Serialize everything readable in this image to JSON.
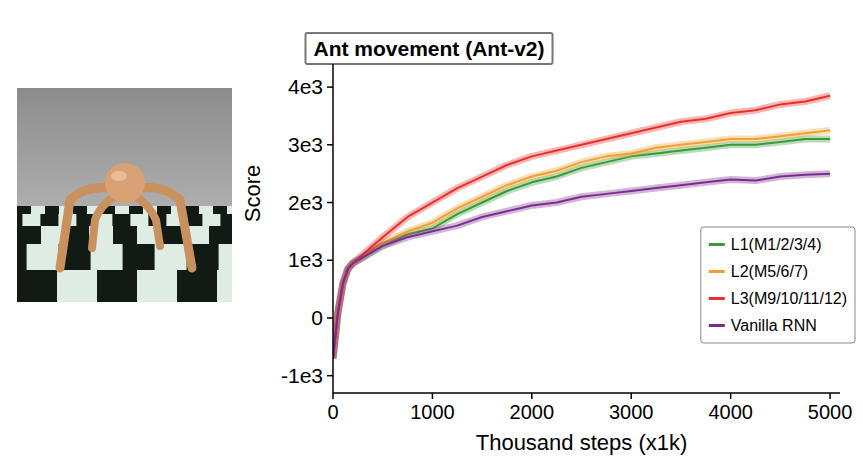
{
  "chart_data": {
    "type": "line",
    "title": "Ant movement (Ant-v2)",
    "x_label": "Thousand steps (x1k)",
    "y_label": "Score",
    "x": [
      0,
      50,
      100,
      150,
      200,
      300,
      400,
      500,
      750,
      1000,
      1250,
      1500,
      1750,
      2000,
      2250,
      2500,
      2750,
      3000,
      3250,
      3500,
      3750,
      4000,
      4250,
      4500,
      4750,
      5000
    ],
    "series": [
      {
        "name": "L1(M1/2/3/4)",
        "color": "#3a9a3a",
        "values": [
          -700,
          100,
          600,
          850,
          950,
          1050,
          1150,
          1250,
          1450,
          1550,
          1800,
          2000,
          2200,
          2350,
          2450,
          2600,
          2700,
          2800,
          2850,
          2900,
          2950,
          3000,
          3000,
          3050,
          3100,
          3100
        ]
      },
      {
        "name": "L2(M5/6/7)",
        "color": "#f0a030",
        "values": [
          -700,
          100,
          600,
          850,
          950,
          1050,
          1200,
          1300,
          1500,
          1650,
          1900,
          2100,
          2300,
          2450,
          2550,
          2700,
          2800,
          2850,
          2950,
          3000,
          3050,
          3100,
          3100,
          3150,
          3200,
          3250
        ]
      },
      {
        "name": "L3(M9/10/11/12)",
        "color": "#e8302a",
        "values": [
          -700,
          100,
          600,
          850,
          950,
          1100,
          1250,
          1400,
          1750,
          2000,
          2250,
          2450,
          2650,
          2800,
          2900,
          3000,
          3100,
          3200,
          3300,
          3400,
          3450,
          3550,
          3600,
          3700,
          3750,
          3850
        ]
      },
      {
        "name": "Vanilla RNN",
        "color": "#7b2d8e",
        "values": [
          -700,
          100,
          600,
          850,
          950,
          1050,
          1150,
          1250,
          1400,
          1500,
          1600,
          1750,
          1850,
          1950,
          2000,
          2100,
          2150,
          2200,
          2250,
          2300,
          2350,
          2400,
          2380,
          2450,
          2480,
          2500
        ]
      }
    ],
    "xlim": [
      0,
      5100
    ],
    "xticks": [
      0,
      1000,
      2000,
      3000,
      4000,
      5000
    ],
    "ylim": [
      -1300,
      4400
    ],
    "yticks": [
      {
        "value": -1000,
        "label": "-1e3"
      },
      {
        "value": 0,
        "label": "0"
      },
      {
        "value": 1000,
        "label": "1e3"
      },
      {
        "value": 2000,
        "label": "2e3"
      },
      {
        "value": 3000,
        "label": "3e3"
      },
      {
        "value": 4000,
        "label": "4e3"
      }
    ],
    "grid": false,
    "legend": "lower right"
  }
}
